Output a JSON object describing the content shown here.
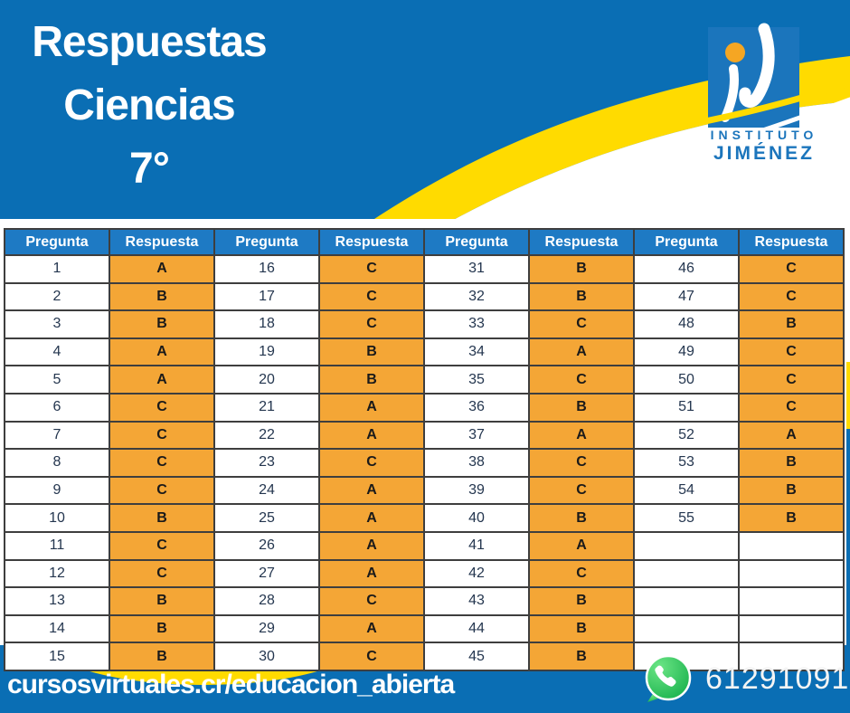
{
  "title": {
    "lines": [
      "Respuestas",
      "Ciencias",
      "7°"
    ]
  },
  "logo": {
    "name": "instituto-jimenez-logo",
    "line1": "INSTITUTO",
    "line2": "JIMÉNEZ"
  },
  "table": {
    "header_labels": [
      "Pregunta",
      "Respuesta",
      "Pregunta",
      "Respuesta",
      "Pregunta",
      "Respuesta",
      "Pregunta",
      "Respuesta"
    ],
    "rows_per_column_pair": 15,
    "column_pairs": 4,
    "answers": [
      {
        "q": "1",
        "a": "A"
      },
      {
        "q": "2",
        "a": "B"
      },
      {
        "q": "3",
        "a": "B"
      },
      {
        "q": "4",
        "a": "A"
      },
      {
        "q": "5",
        "a": "A"
      },
      {
        "q": "6",
        "a": "C"
      },
      {
        "q": "7",
        "a": "C"
      },
      {
        "q": "8",
        "a": "C"
      },
      {
        "q": "9",
        "a": "C"
      },
      {
        "q": "10",
        "a": "B"
      },
      {
        "q": "11",
        "a": "C"
      },
      {
        "q": "12",
        "a": "C"
      },
      {
        "q": "13",
        "a": "B"
      },
      {
        "q": "14",
        "a": "B"
      },
      {
        "q": "15",
        "a": "B"
      },
      {
        "q": "16",
        "a": "C"
      },
      {
        "q": "17",
        "a": "C"
      },
      {
        "q": "18",
        "a": "C"
      },
      {
        "q": "19",
        "a": "B"
      },
      {
        "q": "20",
        "a": "B"
      },
      {
        "q": "21",
        "a": "A"
      },
      {
        "q": "22",
        "a": "A"
      },
      {
        "q": "23",
        "a": "C"
      },
      {
        "q": "24",
        "a": "A"
      },
      {
        "q": "25",
        "a": "A"
      },
      {
        "q": "26",
        "a": "A"
      },
      {
        "q": "27",
        "a": "A"
      },
      {
        "q": "28",
        "a": "C"
      },
      {
        "q": "29",
        "a": "A"
      },
      {
        "q": "30",
        "a": "C"
      },
      {
        "q": "31",
        "a": "B"
      },
      {
        "q": "32",
        "a": "B"
      },
      {
        "q": "33",
        "a": "C"
      },
      {
        "q": "34",
        "a": "A"
      },
      {
        "q": "35",
        "a": "C"
      },
      {
        "q": "36",
        "a": "B"
      },
      {
        "q": "37",
        "a": "A"
      },
      {
        "q": "38",
        "a": "C"
      },
      {
        "q": "39",
        "a": "C"
      },
      {
        "q": "40",
        "a": "B"
      },
      {
        "q": "41",
        "a": "A"
      },
      {
        "q": "42",
        "a": "C"
      },
      {
        "q": "43",
        "a": "B"
      },
      {
        "q": "44",
        "a": "B"
      },
      {
        "q": "45",
        "a": "B"
      },
      {
        "q": "46",
        "a": "C"
      },
      {
        "q": "47",
        "a": "C"
      },
      {
        "q": "48",
        "a": "B"
      },
      {
        "q": "49",
        "a": "C"
      },
      {
        "q": "50",
        "a": "C"
      },
      {
        "q": "51",
        "a": "C"
      },
      {
        "q": "52",
        "a": "A"
      },
      {
        "q": "53",
        "a": "B"
      },
      {
        "q": "54",
        "a": "B"
      },
      {
        "q": "55",
        "a": "B"
      }
    ]
  },
  "footer": {
    "url": "cursosvirtuales.cr/educacion_abierta",
    "phone": "61291091",
    "whatsapp_icon": "whatsapp-icon"
  },
  "colors": {
    "bg-blue": "#0A6EB4",
    "yellow": "#FFDB00",
    "header-blue": "#1E7AC4",
    "orange": "#F4A636",
    "border-dark": "#3E3E3E",
    "number-text": "#24364F",
    "answer-text": "#1A1A1A",
    "logo-blue": "#1B75BC",
    "whatsapp-green": "#25D366"
  }
}
